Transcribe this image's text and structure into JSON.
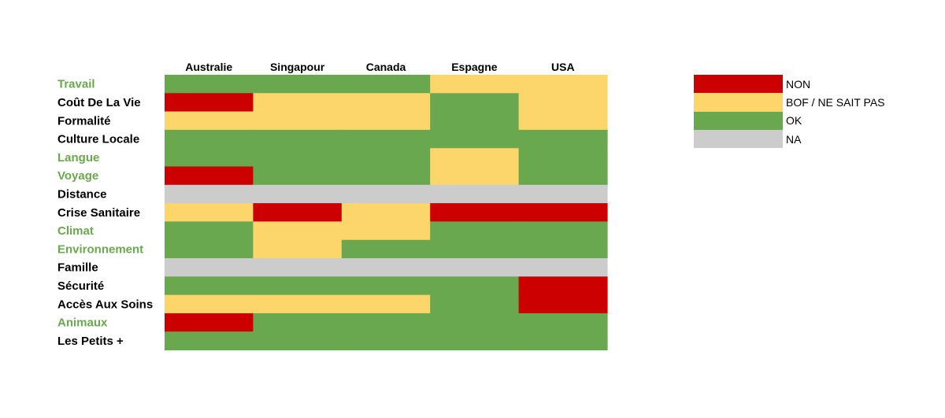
{
  "chart_data": {
    "type": "heatmap",
    "title": "",
    "columns": [
      "Australie",
      "Singapour",
      "Canada",
      "Espagne",
      "USA"
    ],
    "rows": [
      {
        "label": "Travail",
        "highlight": true,
        "values": [
          "OK",
          "OK",
          "OK",
          "BOF",
          "BOF"
        ]
      },
      {
        "label": "Coût De La Vie",
        "highlight": false,
        "values": [
          "NON",
          "BOF",
          "BOF",
          "OK",
          "BOF"
        ]
      },
      {
        "label": "Formalité",
        "highlight": false,
        "values": [
          "BOF",
          "BOF",
          "BOF",
          "OK",
          "BOF"
        ]
      },
      {
        "label": "Culture Locale",
        "highlight": false,
        "values": [
          "OK",
          "OK",
          "OK",
          "OK",
          "OK"
        ]
      },
      {
        "label": "Langue",
        "highlight": true,
        "values": [
          "OK",
          "OK",
          "OK",
          "BOF",
          "OK"
        ]
      },
      {
        "label": "Voyage",
        "highlight": true,
        "values": [
          "NON",
          "OK",
          "OK",
          "BOF",
          "OK"
        ]
      },
      {
        "label": "Distance",
        "highlight": false,
        "values": [
          "NA",
          "NA",
          "NA",
          "NA",
          "NA"
        ]
      },
      {
        "label": "Crise Sanitaire",
        "highlight": false,
        "values": [
          "BOF",
          "NON",
          "BOF",
          "NON",
          "NON"
        ]
      },
      {
        "label": "Climat",
        "highlight": true,
        "values": [
          "OK",
          "BOF",
          "BOF",
          "OK",
          "OK"
        ]
      },
      {
        "label": "Environnement",
        "highlight": true,
        "values": [
          "OK",
          "BOF",
          "OK",
          "OK",
          "OK"
        ]
      },
      {
        "label": "Famille",
        "highlight": false,
        "values": [
          "NA",
          "NA",
          "NA",
          "NA",
          "NA"
        ]
      },
      {
        "label": "Sécurité",
        "highlight": false,
        "values": [
          "OK",
          "OK",
          "OK",
          "OK",
          "NON"
        ]
      },
      {
        "label": "Accès Aux Soins",
        "highlight": false,
        "values": [
          "BOF",
          "BOF",
          "BOF",
          "OK",
          "NON"
        ]
      },
      {
        "label": "Animaux",
        "highlight": true,
        "values": [
          "NON",
          "OK",
          "OK",
          "OK",
          "OK"
        ]
      },
      {
        "label": "Les Petits +",
        "highlight": false,
        "values": [
          "OK",
          "OK",
          "OK",
          "OK",
          "OK"
        ]
      }
    ],
    "legend": {
      "position": "right",
      "items": [
        {
          "key": "NON",
          "label": "NON",
          "color": "#cc0000"
        },
        {
          "key": "BOF",
          "label": "BOF / NE SAIT PAS",
          "color": "#fcd66b"
        },
        {
          "key": "OK",
          "label": "OK",
          "color": "#6aa84f"
        },
        {
          "key": "NA",
          "label": "NA",
          "color": "#cccccc"
        }
      ]
    },
    "colors": {
      "label_default": "#000000",
      "label_highlight": "#6aa84f"
    }
  }
}
